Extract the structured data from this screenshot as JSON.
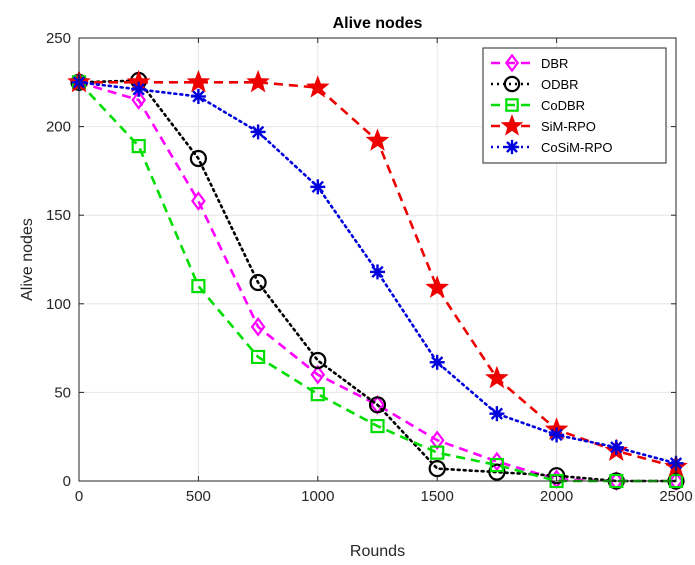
{
  "chart_data": {
    "type": "line",
    "title": "Alive nodes",
    "xlabel": "Rounds",
    "ylabel": "Alive nodes",
    "xlim": [
      0,
      2500
    ],
    "ylim": [
      0,
      250
    ],
    "xticks": [
      0,
      500,
      1000,
      1500,
      2000,
      2500
    ],
    "yticks": [
      0,
      50,
      100,
      150,
      200,
      250
    ],
    "grid": true,
    "legend_position": "top-right",
    "x": [
      0,
      250,
      500,
      750,
      1000,
      1250,
      1500,
      1750,
      2000,
      2250,
      2500
    ],
    "series": [
      {
        "name": "DBR",
        "color": "#ff00ff",
        "dash": "dashed",
        "marker": "diamond",
        "values": [
          225,
          215,
          158,
          87,
          60,
          43,
          23,
          11,
          1,
          0,
          0
        ]
      },
      {
        "name": "ODBR",
        "color": "#000000",
        "dash": "dotted",
        "marker": "circle",
        "values": [
          225,
          226,
          182,
          112,
          68,
          43,
          7,
          5,
          3,
          0,
          0
        ]
      },
      {
        "name": "CoDBR",
        "color": "#00dd00",
        "dash": "dashed",
        "marker": "square",
        "values": [
          225,
          189,
          110,
          70,
          49,
          31,
          16,
          9,
          0,
          0,
          0
        ]
      },
      {
        "name": "SiM-RPO",
        "color": "#ee0000",
        "dash": "dashed",
        "marker": "star",
        "values": [
          225,
          225,
          225,
          225,
          222,
          192,
          109,
          58,
          29,
          17,
          8
        ]
      },
      {
        "name": "CoSiM-RPO",
        "color": "#0000dd",
        "dash": "dotted",
        "marker": "asterisk",
        "values": [
          225,
          221,
          217,
          197,
          166,
          118,
          67,
          38,
          26,
          19,
          10
        ]
      }
    ]
  }
}
